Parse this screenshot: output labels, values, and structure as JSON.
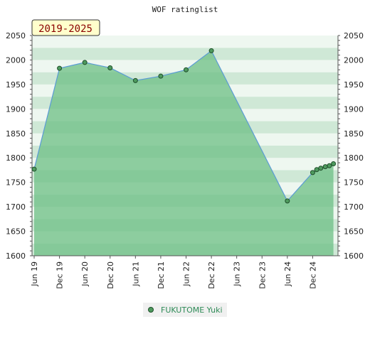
{
  "chart_data": {
    "type": "area",
    "title": "WOF ratinglist",
    "range_label": "2019-2025",
    "ylim": [
      1600,
      2050
    ],
    "y_ticks": [
      1600,
      1650,
      1700,
      1750,
      1800,
      1850,
      1900,
      1950,
      2000,
      2050
    ],
    "x_ticks": [
      "Jun 19",
      "Dec 19",
      "Jun 20",
      "Dec 20",
      "Jun 21",
      "Dec 21",
      "Jun 22",
      "Dec 22",
      "Jun 23",
      "Dec 23",
      "Jun 24",
      "Dec 24"
    ],
    "xlim": [
      2019.42,
      2025.42
    ],
    "series": [
      {
        "name": "FUKUTOME Yuki",
        "x": [
          2019.42,
          2019.92,
          2020.42,
          2020.92,
          2021.42,
          2021.92,
          2022.42,
          2022.92,
          2024.42,
          2024.92,
          2025.0,
          2025.08,
          2025.17,
          2025.25,
          2025.33
        ],
        "values": [
          1777,
          1983,
          1995,
          1984,
          1958,
          1967,
          1980,
          2019,
          1712,
          1770,
          1776,
          1779,
          1782,
          1784,
          1788
        ]
      }
    ],
    "colors": {
      "area_fill": "#6cbf84",
      "line": "#5b9bd5",
      "marker": "#4e9a5e",
      "band_dark": "#cfe8d6",
      "band_light": "#eef7f0"
    },
    "legend_position": "bottom-center",
    "grid": true
  }
}
